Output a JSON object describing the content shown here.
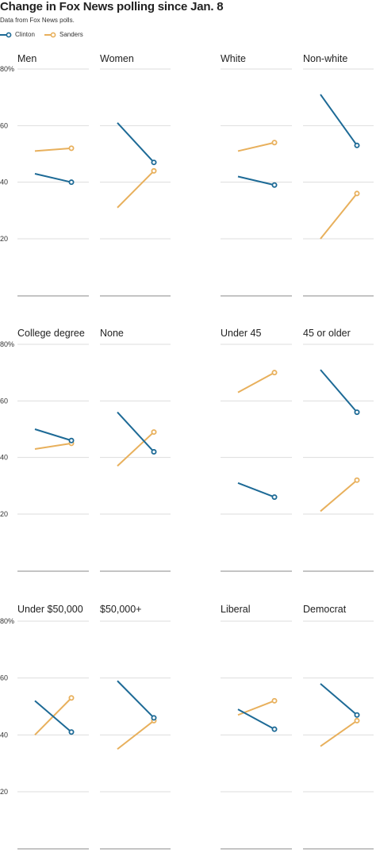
{
  "title": "Change in Fox News polling since Jan. 8",
  "subtitle": "Data from Fox News polls.",
  "legend": [
    {
      "name": "Clinton",
      "color": "#1d6a96"
    },
    {
      "name": "Sanders",
      "color": "#e8b05c"
    }
  ],
  "chart_data": {
    "type": "line",
    "ylim": [
      0,
      80
    ],
    "yticks": [
      20,
      40,
      60,
      80
    ],
    "ytick_labels": [
      "20",
      "40",
      "60",
      "80%"
    ],
    "grid": true,
    "legend_position": "top-left",
    "series_names": [
      "Clinton",
      "Sanders"
    ],
    "panels": [
      {
        "label": "Men",
        "clinton": [
          43,
          40
        ],
        "sanders": [
          51,
          52
        ]
      },
      {
        "label": "Women",
        "clinton": [
          61,
          47
        ],
        "sanders": [
          31,
          44
        ]
      },
      {
        "label": "White",
        "clinton": [
          42,
          39
        ],
        "sanders": [
          51,
          54
        ]
      },
      {
        "label": "Non-white",
        "clinton": [
          71,
          53
        ],
        "sanders": [
          20,
          36
        ]
      },
      {
        "label": "College degree",
        "clinton": [
          50,
          46
        ],
        "sanders": [
          43,
          45
        ]
      },
      {
        "label": "None",
        "clinton": [
          56,
          42
        ],
        "sanders": [
          37,
          49
        ]
      },
      {
        "label": "Under 45",
        "clinton": [
          31,
          26
        ],
        "sanders": [
          63,
          70
        ]
      },
      {
        "label": "45 or older",
        "clinton": [
          71,
          56
        ],
        "sanders": [
          21,
          32
        ]
      },
      {
        "label": "Under $50,000",
        "clinton": [
          52,
          41
        ],
        "sanders": [
          40,
          53
        ]
      },
      {
        "label": "$50,000+",
        "clinton": [
          59,
          46
        ],
        "sanders": [
          35,
          45
        ]
      },
      {
        "label": "Liberal",
        "clinton": [
          49,
          42
        ],
        "sanders": [
          47,
          52
        ]
      },
      {
        "label": "Democrat",
        "clinton": [
          58,
          47
        ],
        "sanders": [
          36,
          45
        ]
      }
    ]
  }
}
